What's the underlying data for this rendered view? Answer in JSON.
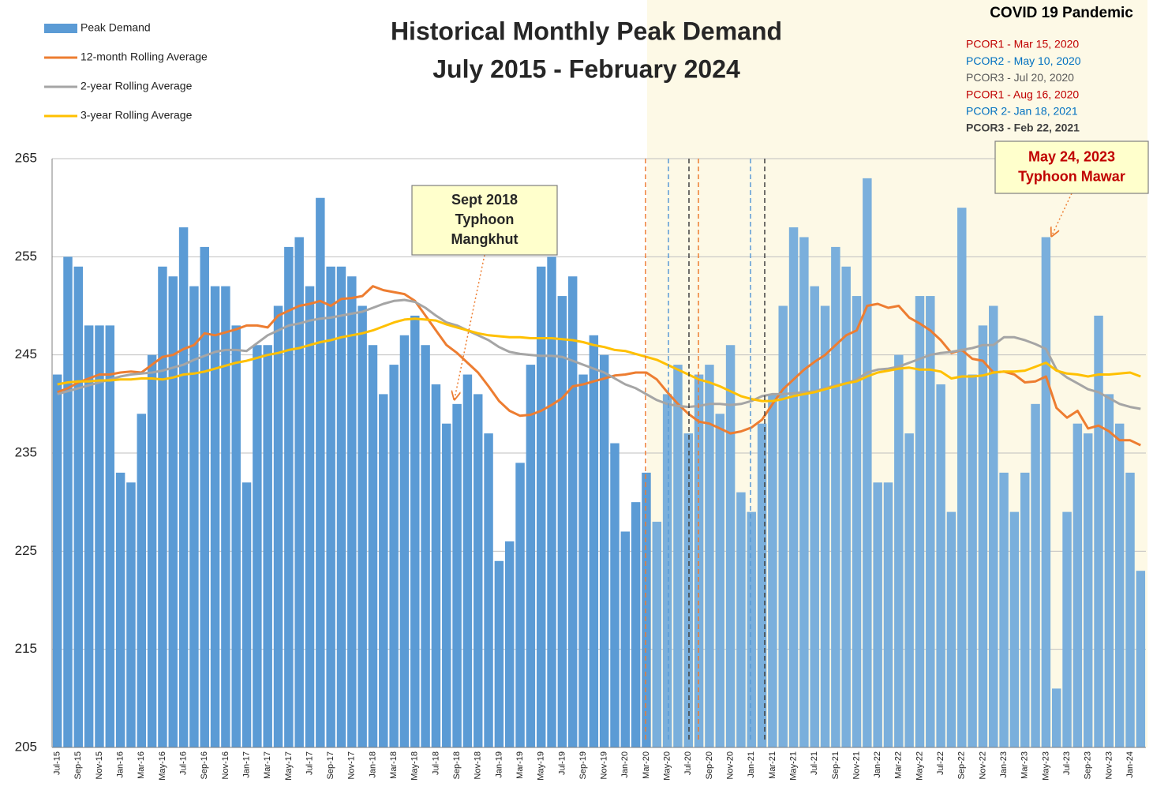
{
  "chart_data": {
    "type": "bar",
    "title_lines": [
      "Historical Monthly Peak Demand",
      "July 2015 - February 2024"
    ],
    "categories": [
      "Jul-15",
      null,
      "Sep-15",
      null,
      "Nov-15",
      null,
      "Jan-16",
      null,
      "Mar-16",
      null,
      "May-16",
      null,
      "Jul-16",
      null,
      "Sep-16",
      null,
      "Nov-16",
      null,
      "Jan-17",
      null,
      "Mar-17",
      null,
      "May-17",
      null,
      "Jul-17",
      null,
      "Sep-17",
      null,
      "Nov-17",
      null,
      "Jan-18",
      null,
      "Mar-18",
      null,
      "May-18",
      null,
      "Jul-18",
      null,
      "Sep-18",
      null,
      "Nov-18",
      null,
      "Jan-19",
      null,
      "Mar-19",
      null,
      "May-19",
      null,
      "Jul-19",
      null,
      "Sep-19",
      null,
      "Nov-19",
      null,
      "Jan-20",
      null,
      "Mar-20",
      null,
      "May-20",
      null,
      "Jul-20",
      null,
      "Sep-20",
      null,
      "Nov-20",
      null,
      "Jan-21",
      null,
      "Mar-21",
      null,
      "May-21",
      null,
      "Jul-21",
      null,
      "Sep-21",
      null,
      "Nov-21",
      null,
      "Jan-22",
      null,
      "Mar-22",
      null,
      "May-22",
      null,
      "Jul-22",
      null,
      "Sep-22",
      null,
      "Nov-22",
      null,
      "Jan-23",
      null,
      "Mar-23",
      null,
      "May-23",
      null,
      "Jul-23",
      null,
      "Sep-23",
      null,
      "Nov-23",
      null,
      "Jan-24",
      null
    ],
    "series": [
      {
        "name": "Peak Demand",
        "kind": "bar",
        "color": "#5b9bd5",
        "values": [
          243,
          255,
          254,
          248,
          248,
          248,
          233,
          232,
          239,
          245,
          254,
          253,
          258,
          252,
          256,
          252,
          252,
          248,
          232,
          246,
          246,
          250,
          256,
          257,
          252,
          261,
          254,
          254,
          253,
          250,
          246,
          241,
          244,
          247,
          249,
          246,
          242,
          238,
          240,
          243,
          241,
          237,
          224,
          226,
          234,
          244,
          254,
          255,
          251,
          253,
          243,
          247,
          245,
          236,
          227,
          230,
          233,
          228,
          241,
          244,
          237,
          243,
          244,
          239,
          246,
          231,
          229,
          238,
          241,
          250,
          258,
          257,
          252,
          250,
          256,
          254,
          251,
          263,
          232,
          232,
          245,
          237,
          251,
          251,
          242,
          229,
          260,
          243,
          248,
          250,
          233,
          229,
          233,
          240,
          257,
          211,
          229,
          238,
          237,
          249,
          241,
          238,
          233,
          223
        ]
      },
      {
        "name": "12-month Rolling Average",
        "kind": "line",
        "color": "#ed7d31",
        "values": [
          241.2,
          241.6,
          242.2,
          242.6,
          243,
          243,
          243.2,
          243.3,
          243.2,
          244,
          244.8,
          245,
          245.6,
          246,
          247.2,
          247,
          247.3,
          247.6,
          248,
          248,
          247.8,
          249,
          249.5,
          250,
          250.2,
          250.5,
          250,
          250.7,
          250.8,
          251,
          252,
          251.6,
          251.4,
          251.2,
          250.5,
          249,
          247.5,
          246,
          245.2,
          244.2,
          243.2,
          241.8,
          240.3,
          239.3,
          238.8,
          238.9,
          239.3,
          239.9,
          240.6,
          241.8,
          242,
          242.3,
          242.6,
          242.9,
          243,
          243.2,
          243.2,
          242.5,
          241.2,
          240,
          239,
          238.2,
          238,
          237.5,
          237,
          237.2,
          237.6,
          238.4,
          240,
          241.5,
          242.5,
          243.5,
          244.3,
          245,
          246,
          247,
          247.5,
          250,
          250.2,
          249.8,
          250,
          248.8,
          248.2,
          247.5,
          246.5,
          245.2,
          245.5,
          244.6,
          244.4,
          243.2,
          243.3,
          243,
          242.2,
          242.3,
          242.8,
          239.6,
          238.6,
          239.3,
          237.5,
          237.8,
          237.2,
          236.3,
          236.3,
          235.8
        ]
      },
      {
        "name": "2-year Rolling Average",
        "kind": "line",
        "color": "#a5a5a5",
        "values": [
          241,
          241.3,
          241.6,
          241.9,
          242.2,
          242.5,
          242.8,
          243,
          243.1,
          243.2,
          243.4,
          243.7,
          244,
          244.5,
          244.9,
          245.3,
          245.5,
          245.5,
          245.4,
          246.2,
          247,
          247.5,
          248,
          248.2,
          248.5,
          248.7,
          248.8,
          249,
          249.2,
          249.4,
          249.8,
          250.2,
          250.5,
          250.6,
          250.4,
          249.8,
          249,
          248.3,
          248,
          247.5,
          247,
          246.5,
          245.8,
          245.3,
          245.1,
          245,
          244.9,
          244.9,
          244.8,
          244.4,
          244,
          243.6,
          243.2,
          242.6,
          242,
          241.6,
          241,
          240.4,
          240,
          239.8,
          239.7,
          239.8,
          240,
          240,
          239.9,
          240,
          240.3,
          240.8,
          241,
          241,
          241.1,
          241.2,
          241.3,
          241.6,
          241.9,
          242.1,
          242.5,
          243.2,
          243.5,
          243.6,
          243.8,
          244.2,
          244.6,
          245,
          245.2,
          245.3,
          245.5,
          245.7,
          246,
          246,
          246.8,
          246.8,
          246.5,
          246.1,
          245.6,
          243.5,
          242.7,
          242.1,
          241.5,
          241.2,
          240.6,
          240,
          239.7,
          239.5
        ]
      },
      {
        "name": "3-year Rolling Average",
        "kind": "line",
        "color": "#ffc000",
        "values": [
          242,
          242.2,
          242.3,
          242.3,
          242.4,
          242.4,
          242.5,
          242.5,
          242.6,
          242.6,
          242.5,
          242.7,
          243,
          243.1,
          243.3,
          243.6,
          243.9,
          244.2,
          244.4,
          244.7,
          245,
          245.2,
          245.5,
          245.7,
          246,
          246.3,
          246.5,
          246.8,
          247,
          247.2,
          247.5,
          247.9,
          248.3,
          248.6,
          248.7,
          248.6,
          248.5,
          248.1,
          247.8,
          247.5,
          247.2,
          247,
          246.9,
          246.8,
          246.8,
          246.7,
          246.7,
          246.7,
          246.6,
          246.5,
          246.3,
          246,
          245.8,
          245.5,
          245.4,
          245.1,
          244.8,
          244.5,
          244,
          243.5,
          243,
          242.5,
          242.2,
          241.8,
          241.3,
          240.8,
          240.5,
          240.3,
          240.3,
          240.5,
          240.8,
          241,
          241.2,
          241.5,
          241.8,
          242.1,
          242.3,
          242.8,
          243.2,
          243.4,
          243.6,
          243.7,
          243.5,
          243.5,
          243.3,
          242.6,
          242.8,
          242.8,
          242.9,
          243.2,
          243.3,
          243.3,
          243.4,
          243.8,
          244.2,
          243.4,
          243.1,
          243,
          242.8,
          243,
          243,
          243.1,
          243.2,
          242.8
        ]
      }
    ],
    "ylim": [
      205,
      265
    ],
    "yticks": [
      205,
      215,
      225,
      235,
      245,
      255,
      265
    ],
    "grid": true,
    "events_title": "COVID 19 Pandemic",
    "events": [
      {
        "label": "PCOR1 - Mar 15, 2020",
        "color": "#c00000",
        "line_color": "#ed7d31"
      },
      {
        "label": "PCOR2 - May 10, 2020",
        "color": "#0070c0",
        "line_color": "#5b9bd5"
      },
      {
        "label": "PCOR3 - Jul 20, 2020",
        "color": "#595959",
        "line_color": "#404040"
      },
      {
        "label": "PCOR1 - Aug 16, 2020",
        "color": "#c00000",
        "line_color": "#ed7d31"
      },
      {
        "label": "PCOR 2- Jan 18, 2021",
        "color": "#0070c0",
        "line_color": "#5b9bd5"
      },
      {
        "label": "PCOR3 - Feb 22, 2021",
        "color": "#404040",
        "line_color": "#404040",
        "bold": true
      }
    ],
    "annotations": [
      {
        "lines": [
          "Sept 2018",
          "Typhoon",
          "Mangkhut"
        ],
        "color": "#262626"
      },
      {
        "lines": [
          "May 24, 2023",
          "Typhoon Mawar"
        ],
        "color": "#c00000"
      }
    ]
  }
}
